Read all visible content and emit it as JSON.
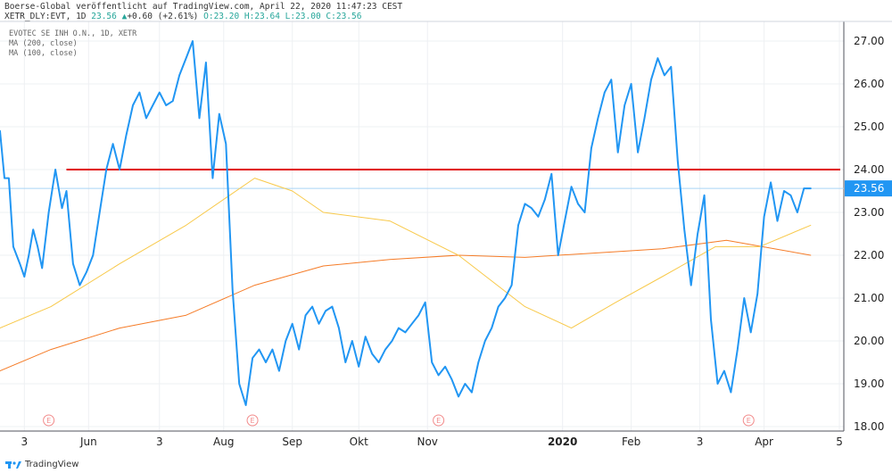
{
  "header": {
    "source_line": "Boerse-Global veröffentlicht auf TradingView.com, April 22, 2020 11:47:23 CEST",
    "symbol": "XETR_DLY:EVT, 1D",
    "last": "23.56",
    "change": "+0.60 (+2.61%)",
    "ohlc": "O:23.20 H:23.64 L:23.00 C:23.56"
  },
  "legend": {
    "title": "EVOTEC SE INH O.N., 1D, XETR",
    "ma200": "MA (200, close)",
    "ma100": "MA (100, close)"
  },
  "footer": {
    "brand": "TradingView"
  },
  "colors": {
    "price": "#2196f3",
    "ma200": "#f57c28",
    "ma100": "#f8c94a",
    "resistance": "#e00000",
    "last_price_line": "#a9d4f5",
    "grid": "#eef0f3",
    "axis_text": "#222222",
    "earnings_marker": "#f28b8b"
  },
  "chart_data": {
    "type": "line",
    "title": "EVOTEC SE INH O.N., 1D, XETR",
    "ylim": [
      18.0,
      27.5
    ],
    "y_ticks": [
      "18.00",
      "19.00",
      "20.00",
      "21.00",
      "22.00",
      "23.00",
      "24.00",
      "25.00",
      "26.00",
      "27.00"
    ],
    "x_range": [
      "2019-04-22",
      "2020-05-07"
    ],
    "x_ticks": [
      {
        "date": "2019-05-03",
        "label": "3"
      },
      {
        "date": "2019-06-01",
        "label": "Jun"
      },
      {
        "date": "2019-07-03",
        "label": "3"
      },
      {
        "date": "2019-08-01",
        "label": "Aug"
      },
      {
        "date": "2019-09-01",
        "label": "Sep"
      },
      {
        "date": "2019-10-01",
        "label": "Okt"
      },
      {
        "date": "2019-11-01",
        "label": "Nov"
      },
      {
        "date": "2020-01-01",
        "label": "2020"
      },
      {
        "date": "2020-02-01",
        "label": "Feb"
      },
      {
        "date": "2020-03-03",
        "label": "3"
      },
      {
        "date": "2020-04-01",
        "label": "Apr"
      },
      {
        "date": "2020-05-05",
        "label": "5"
      }
    ],
    "grid": true,
    "last_price": 23.56,
    "last_price_label": "23.56",
    "resistance_level": 24.0,
    "resistance_from": "2019-05-22",
    "earnings_markers": [
      {
        "date": "2019-05-14",
        "label": "E"
      },
      {
        "date": "2019-08-14",
        "label": "E"
      },
      {
        "date": "2019-11-06",
        "label": "E"
      },
      {
        "date": "2020-03-25",
        "label": "E"
      }
    ],
    "series": [
      {
        "name": "EVOTEC SE INH O.N.",
        "x": [
          "2019-04-22",
          "2019-04-24",
          "2019-04-26",
          "2019-04-28",
          "2019-05-01",
          "2019-05-03",
          "2019-05-05",
          "2019-05-07",
          "2019-05-09",
          "2019-05-11",
          "2019-05-14",
          "2019-05-17",
          "2019-05-20",
          "2019-05-22",
          "2019-05-25",
          "2019-05-28",
          "2019-05-31",
          "2019-06-03",
          "2019-06-06",
          "2019-06-09",
          "2019-06-12",
          "2019-06-15",
          "2019-06-18",
          "2019-06-21",
          "2019-06-24",
          "2019-06-27",
          "2019-06-30",
          "2019-07-03",
          "2019-07-06",
          "2019-07-09",
          "2019-07-12",
          "2019-07-15",
          "2019-07-18",
          "2019-07-21",
          "2019-07-24",
          "2019-07-27",
          "2019-07-30",
          "2019-08-02",
          "2019-08-05",
          "2019-08-08",
          "2019-08-11",
          "2019-08-14",
          "2019-08-17",
          "2019-08-20",
          "2019-08-23",
          "2019-08-26",
          "2019-08-29",
          "2019-09-01",
          "2019-09-04",
          "2019-09-07",
          "2019-09-10",
          "2019-09-13",
          "2019-09-16",
          "2019-09-19",
          "2019-09-22",
          "2019-09-25",
          "2019-09-28",
          "2019-10-01",
          "2019-10-04",
          "2019-10-07",
          "2019-10-10",
          "2019-10-13",
          "2019-10-16",
          "2019-10-19",
          "2019-10-22",
          "2019-10-25",
          "2019-10-28",
          "2019-10-31",
          "2019-11-03",
          "2019-11-06",
          "2019-11-09",
          "2019-11-12",
          "2019-11-15",
          "2019-11-18",
          "2019-11-21",
          "2019-11-24",
          "2019-11-27",
          "2019-11-30",
          "2019-12-03",
          "2019-12-06",
          "2019-12-09",
          "2019-12-12",
          "2019-12-15",
          "2019-12-18",
          "2019-12-21",
          "2019-12-24",
          "2019-12-27",
          "2019-12-30",
          "2020-01-02",
          "2020-01-05",
          "2020-01-08",
          "2020-01-11",
          "2020-01-14",
          "2020-01-17",
          "2020-01-20",
          "2020-01-23",
          "2020-01-26",
          "2020-01-29",
          "2020-02-01",
          "2020-02-04",
          "2020-02-07",
          "2020-02-10",
          "2020-02-13",
          "2020-02-16",
          "2020-02-19",
          "2020-02-22",
          "2020-02-25",
          "2020-02-28",
          "2020-03-02",
          "2020-03-05",
          "2020-03-08",
          "2020-03-11",
          "2020-03-14",
          "2020-03-17",
          "2020-03-20",
          "2020-03-23",
          "2020-03-26",
          "2020-03-29",
          "2020-04-01",
          "2020-04-04",
          "2020-04-07",
          "2020-04-10",
          "2020-04-13",
          "2020-04-16",
          "2020-04-19",
          "2020-04-22"
        ],
        "values": [
          24.9,
          23.8,
          23.8,
          22.2,
          21.8,
          21.5,
          22.0,
          22.6,
          22.2,
          21.7,
          23.0,
          24.0,
          23.1,
          23.5,
          21.8,
          21.3,
          21.6,
          22.0,
          23.0,
          24.0,
          24.6,
          24.0,
          24.8,
          25.5,
          25.8,
          25.2,
          25.5,
          25.8,
          25.5,
          25.6,
          26.2,
          26.6,
          27.0,
          25.2,
          26.5,
          23.8,
          25.3,
          24.6,
          21.2,
          19.0,
          18.5,
          19.6,
          19.8,
          19.5,
          19.8,
          19.3,
          20.0,
          20.4,
          19.8,
          20.6,
          20.8,
          20.4,
          20.7,
          20.8,
          20.3,
          19.5,
          20.0,
          19.4,
          20.1,
          19.7,
          19.5,
          19.8,
          20.0,
          20.3,
          20.2,
          20.4,
          20.6,
          20.9,
          19.5,
          19.2,
          19.4,
          19.1,
          18.7,
          19.0,
          18.8,
          19.5,
          20.0,
          20.3,
          20.8,
          21.0,
          21.3,
          22.7,
          23.2,
          23.1,
          22.9,
          23.3,
          23.9,
          22.0,
          22.8,
          23.6,
          23.2,
          23.0,
          24.5,
          25.2,
          25.8,
          26.1,
          24.4,
          25.5,
          26.0,
          24.4,
          25.2,
          26.1,
          26.6,
          26.2,
          26.4,
          24.2,
          22.6,
          21.3,
          22.5,
          23.4,
          20.5,
          19.0,
          19.3,
          18.8,
          19.8,
          21.0,
          20.2,
          21.1,
          22.9,
          23.7,
          22.8,
          23.5,
          23.4,
          23.0,
          23.56,
          23.56
        ],
        "color": "#2196f3"
      },
      {
        "name": "MA (200, close)",
        "x": [
          "2019-04-22",
          "2019-05-15",
          "2019-06-15",
          "2019-07-15",
          "2019-08-15",
          "2019-09-15",
          "2019-10-15",
          "2019-11-15",
          "2019-12-15",
          "2020-01-15",
          "2020-02-15",
          "2020-03-15",
          "2020-04-22"
        ],
        "values": [
          19.3,
          19.8,
          20.3,
          20.6,
          21.3,
          21.75,
          21.9,
          22.0,
          21.95,
          22.05,
          22.15,
          22.35,
          22.0
        ],
        "color": "#f57c28"
      },
      {
        "name": "MA (100, close)",
        "x": [
          "2019-04-22",
          "2019-05-15",
          "2019-06-15",
          "2019-07-15",
          "2019-08-15",
          "2019-09-01",
          "2019-09-15",
          "2019-10-15",
          "2019-11-15",
          "2019-12-15",
          "2020-01-05",
          "2020-01-25",
          "2020-02-15",
          "2020-03-10",
          "2020-03-30",
          "2020-04-22"
        ],
        "values": [
          20.3,
          20.8,
          21.8,
          22.7,
          23.8,
          23.5,
          23.0,
          22.8,
          22.0,
          20.8,
          20.3,
          20.9,
          21.5,
          22.2,
          22.2,
          22.7
        ],
        "color": "#f8c94a"
      }
    ]
  }
}
